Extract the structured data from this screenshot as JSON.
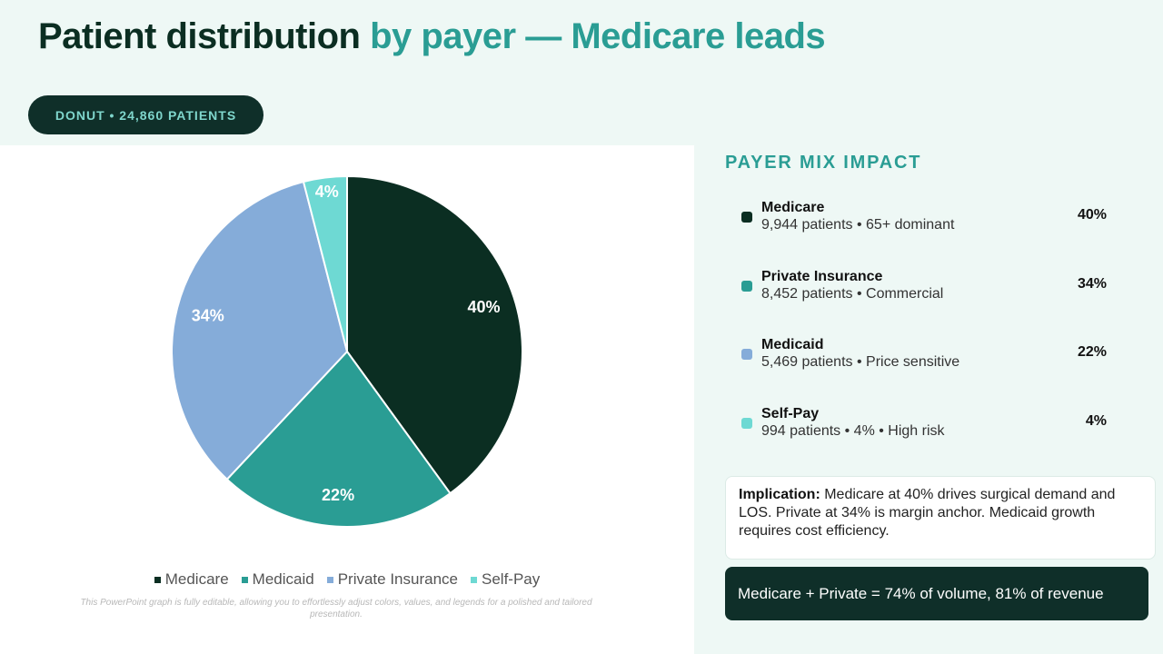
{
  "header": {
    "title_dark": "Patient distribution",
    "title_accent": "by payer — Medicare leads"
  },
  "pill_label": "DONUT • 24,860 PATIENTS",
  "chart_data": {
    "type": "pie",
    "order": "clockwise-from-top",
    "slices": [
      {
        "name": "Medicare",
        "value": 40,
        "label": "40%",
        "color": "#0b2e22"
      },
      {
        "name": "Medicaid",
        "value": 22,
        "label": "22%",
        "color": "#2a9d94"
      },
      {
        "name": "Private Insurance",
        "value": 34,
        "label": "34%",
        "color": "#85acd9"
      },
      {
        "name": "Self-Pay",
        "value": 4,
        "label": "4%",
        "color": "#6ed9d3"
      }
    ],
    "legend": [
      {
        "name": "Medicare",
        "color": "#0b2e22"
      },
      {
        "name": "Medicaid",
        "color": "#2a9d94"
      },
      {
        "name": "Private Insurance",
        "color": "#85acd9"
      },
      {
        "name": "Self-Pay",
        "color": "#6ed9d3"
      }
    ],
    "legend_position": "bottom"
  },
  "footnote": "This PowerPoint graph is fully editable, allowing you to effortlessly adjust colors, values, and legends for a polished and tailored presentation.",
  "side": {
    "title": "PAYER MIX IMPACT",
    "items": [
      {
        "name": "Medicare",
        "detail": "9,944 patients • 65+ dominant",
        "pct": "40%",
        "color": "#0b2e22"
      },
      {
        "name": "Private Insurance",
        "detail": "8,452 patients • Commercial",
        "pct": "34%",
        "color": "#2a9d94"
      },
      {
        "name": "Medicaid",
        "detail": "5,469 patients • Price sensitive",
        "pct": "22%",
        "color": "#85acd9"
      },
      {
        "name": "Self-Pay",
        "detail": "994 patients • 4% • High risk",
        "pct": "4%",
        "color": "#6ed9d3"
      }
    ],
    "implication_label": "Implication:",
    "implication_text": " Medicare at 40% drives surgical demand and LOS. Private at 34% is margin anchor. Medicaid growth requires cost efficiency.",
    "summary": "Medicare + Private = 74% of volume, 81% of revenue"
  }
}
